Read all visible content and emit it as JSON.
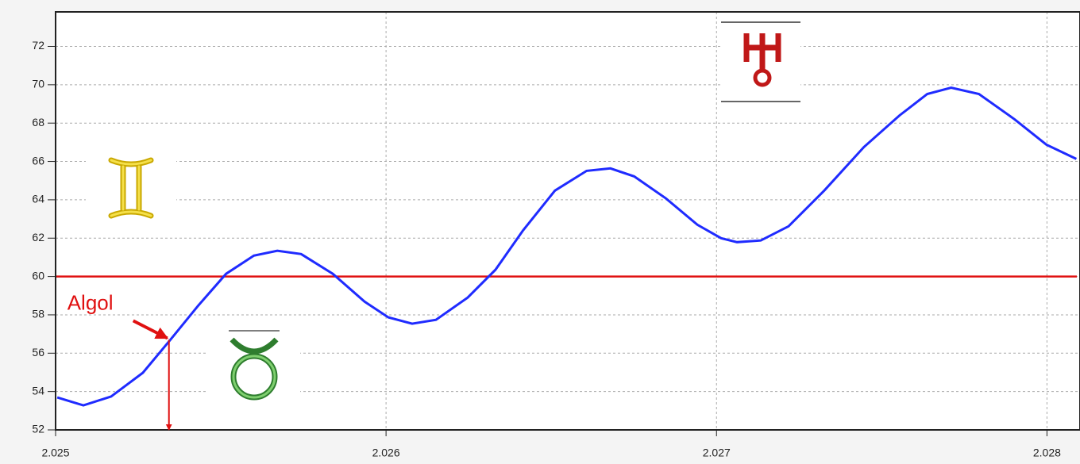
{
  "chart_data": {
    "type": "line",
    "x": [
      2.025005,
      2.025084,
      2.025168,
      2.025264,
      2.025348,
      2.025432,
      2.025516,
      2.0256,
      2.025671,
      2.025743,
      2.025839,
      2.025935,
      2.026007,
      2.026079,
      2.026151,
      2.026247,
      2.026331,
      2.026415,
      2.026511,
      2.026607,
      2.026679,
      2.026751,
      2.026847,
      2.026942,
      2.027014,
      2.027062,
      2.027134,
      2.027218,
      2.027326,
      2.027446,
      2.027554,
      2.027638,
      2.02771,
      2.027794,
      2.027902,
      2.027998,
      2.028089
    ],
    "values": [
      53.69,
      53.28,
      53.74,
      54.98,
      56.71,
      58.49,
      60.14,
      61.09,
      61.34,
      61.17,
      60.14,
      58.69,
      57.87,
      57.54,
      57.74,
      58.9,
      60.35,
      62.41,
      64.48,
      65.51,
      65.64,
      65.22,
      64.07,
      62.7,
      62.0,
      61.79,
      61.88,
      62.62,
      64.48,
      66.75,
      68.4,
      69.52,
      69.85,
      69.52,
      68.2,
      66.88,
      66.13
    ],
    "color": "#1f2bff",
    "xlim": [
      2.025,
      2.0281
    ],
    "xticks": [
      2.025,
      2.026,
      2.027,
      2.028
    ],
    "ylim": [
      52,
      73.8
    ],
    "yticks": [
      52,
      54,
      56,
      58,
      60,
      62,
      64,
      66,
      68,
      70,
      72
    ],
    "grid": true,
    "reference_line": {
      "value": 60,
      "color": "#e01010"
    },
    "annotations": [
      {
        "text": "Algol",
        "x": 2.025343,
        "y": 56.7,
        "color": "#e01010"
      }
    ]
  }
}
